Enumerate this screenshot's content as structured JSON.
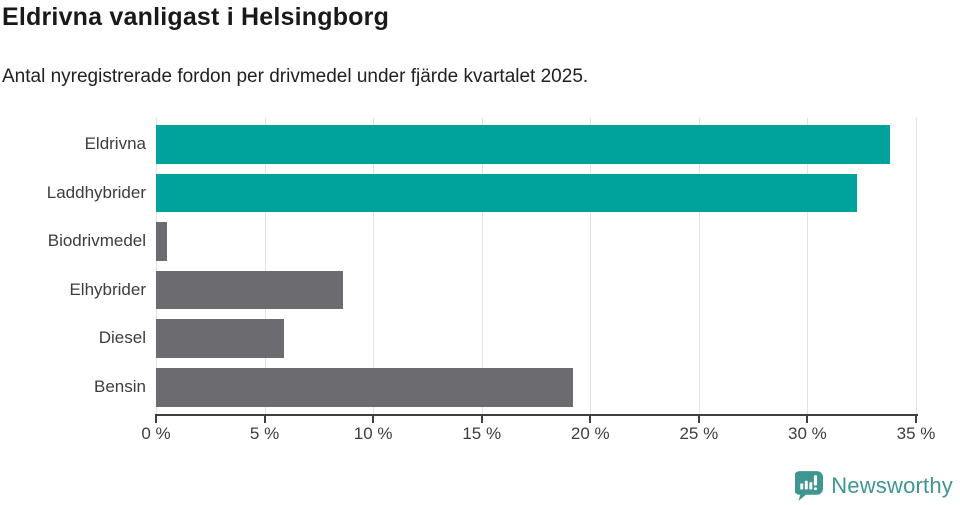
{
  "title": "Eldrivna vanligast i Helsingborg",
  "subtitle": "Antal nyregistrerade fordon per drivmedel under fjärde kvartalet 2025.",
  "chart_data": {
    "type": "bar",
    "orientation": "horizontal",
    "title": "Eldrivna vanligast i Helsingborg",
    "subtitle": "Antal nyregistrerade fordon per drivmedel under fjärde kvartalet 2025.",
    "categories": [
      "Eldrivna",
      "Laddhybrider",
      "Biodrivmedel",
      "Elhybrider",
      "Diesel",
      "Bensin"
    ],
    "values": [
      33.8,
      32.3,
      0.5,
      8.6,
      5.9,
      19.2
    ],
    "unit": "%",
    "xlim": [
      0,
      35
    ],
    "x_tick_values": [
      0,
      5,
      10,
      15,
      20,
      25,
      30,
      35
    ],
    "x_tick_labels": [
      "0 %",
      "5 %",
      "10 %",
      "15 %",
      "20 %",
      "25 %",
      "30 %",
      "35 %"
    ],
    "bar_colors": [
      "#00a39b",
      "#00a39b",
      "#6b6b70",
      "#6b6b70",
      "#6b6b70",
      "#6b6b70"
    ],
    "grid": true,
    "legend": false,
    "xlabel": "",
    "ylabel": ""
  },
  "branding": {
    "logo_text": "Newsworthy",
    "logo_icon": "newsworthy-chart-bubble-icon",
    "logo_color": "#3f9691"
  },
  "colors": {
    "accent_teal": "#00a39b",
    "bar_gray": "#6b6b70",
    "gridline": "#e2e2e2",
    "axis": "#3f3f3f",
    "title_text": "#191919",
    "label_text": "#3d3d3d",
    "background": "#ffffff"
  }
}
